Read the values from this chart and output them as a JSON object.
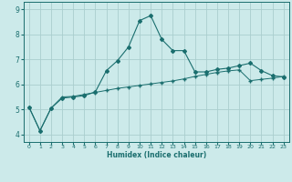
{
  "xlabel": "Humidex (Indice chaleur)",
  "ylabel": "",
  "bg_color": "#cceaea",
  "line_color": "#1a6e6e",
  "grid_color": "#aacece",
  "xlim": [
    -0.5,
    23.5
  ],
  "ylim": [
    3.7,
    9.3
  ],
  "xticks": [
    0,
    1,
    2,
    3,
    4,
    5,
    6,
    7,
    8,
    9,
    10,
    11,
    12,
    13,
    14,
    15,
    16,
    17,
    18,
    19,
    20,
    21,
    22,
    23
  ],
  "yticks": [
    4,
    5,
    6,
    7,
    8,
    9
  ],
  "line1_x": [
    0,
    1,
    2,
    3,
    4,
    5,
    6,
    7,
    8,
    9,
    10,
    11,
    12,
    13,
    14,
    15,
    16,
    17,
    18,
    19,
    20,
    21,
    22,
    23
  ],
  "line1_y": [
    5.1,
    4.15,
    5.05,
    5.45,
    5.5,
    5.55,
    5.7,
    6.55,
    6.95,
    7.5,
    8.55,
    8.75,
    7.8,
    7.35,
    7.35,
    6.5,
    6.5,
    6.6,
    6.65,
    6.75,
    6.85,
    6.55,
    6.35,
    6.3
  ],
  "line2_x": [
    0,
    1,
    2,
    3,
    4,
    5,
    6,
    7,
    8,
    9,
    10,
    11,
    12,
    13,
    14,
    15,
    16,
    17,
    18,
    19,
    20,
    21,
    22,
    23
  ],
  "line2_y": [
    5.1,
    4.15,
    5.05,
    5.5,
    5.52,
    5.6,
    5.68,
    5.76,
    5.84,
    5.9,
    5.96,
    6.02,
    6.08,
    6.14,
    6.22,
    6.32,
    6.4,
    6.48,
    6.54,
    6.58,
    6.15,
    6.2,
    6.25,
    6.32
  ]
}
